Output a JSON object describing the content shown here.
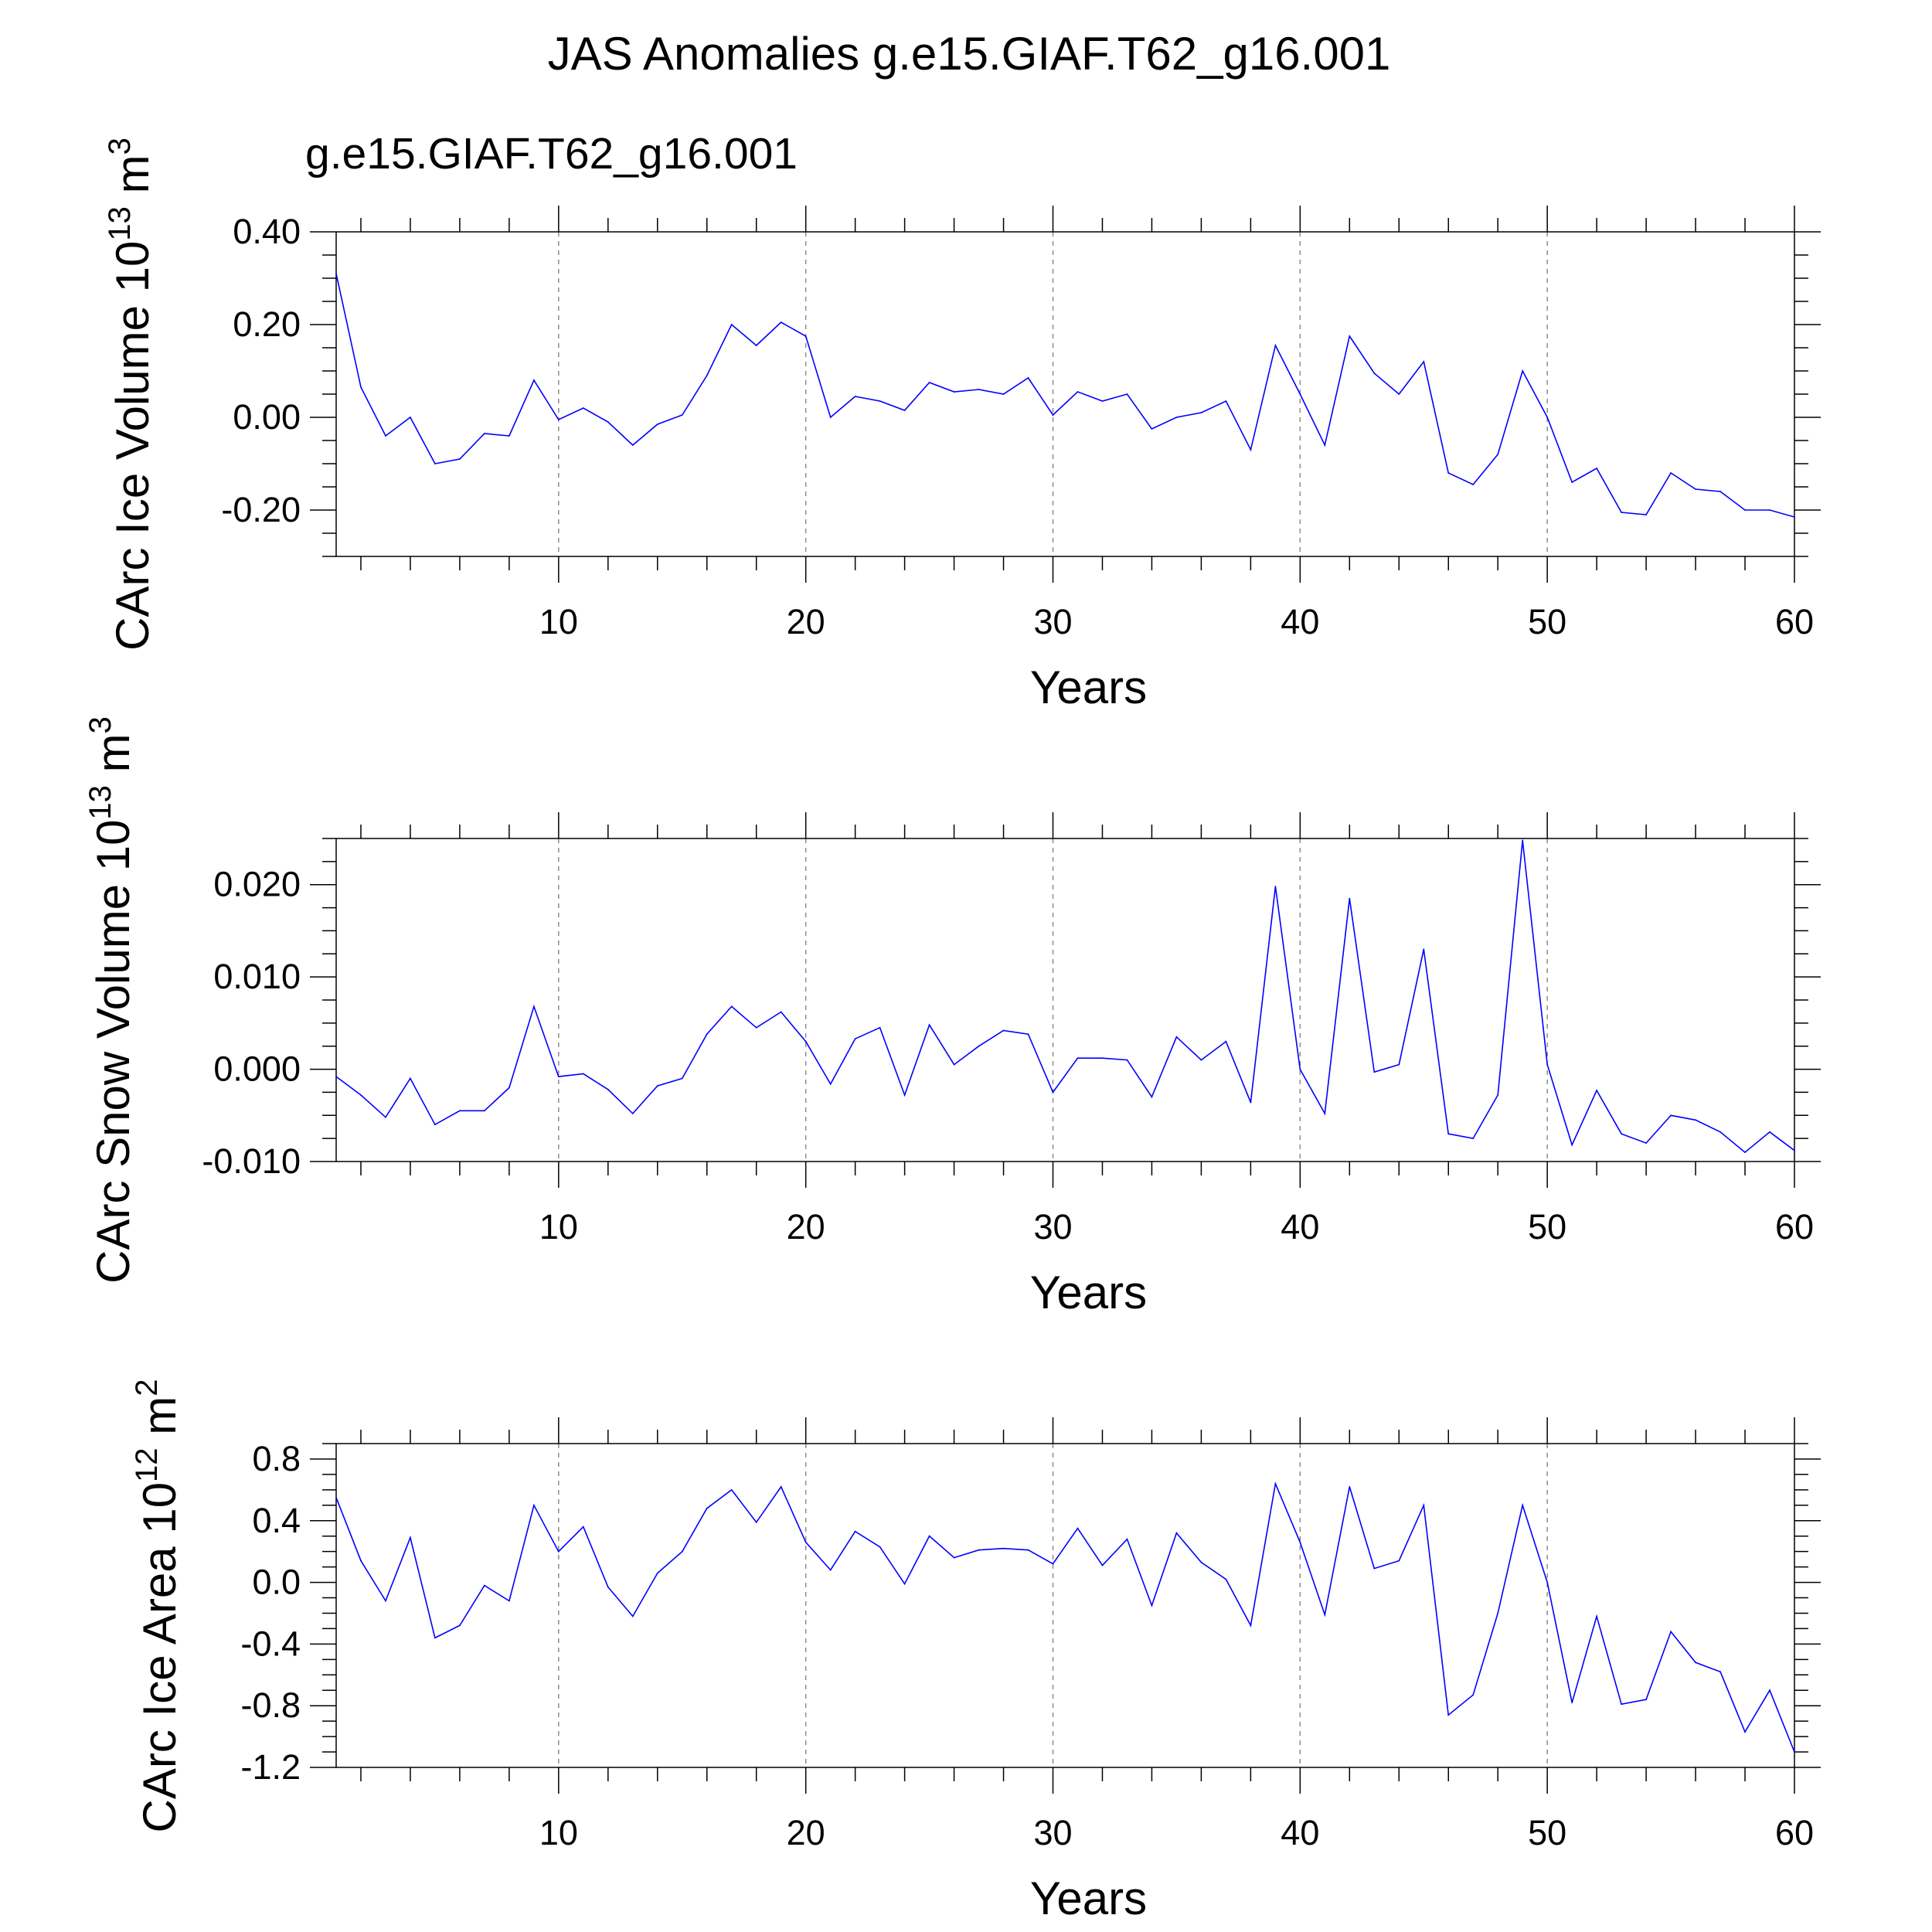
{
  "title": "JAS Anomalies g.e15.GIAF.T62_g16.001",
  "legend_label": "g.e15.GIAF.T62_g16.001",
  "colors": {
    "series": "#0000ff",
    "legend": "#0000ff",
    "grid": "#8c8c8c",
    "axis": "#000000"
  },
  "chart_data": [
    {
      "type": "line",
      "name": "ice-volume",
      "ylabel_main": "CArc Ice Volume 10",
      "ylabel_exp": "13",
      "ylabel_unit": " m",
      "ylabel_unit_exp": "3",
      "xlabel": "Years",
      "xlim": [
        1,
        60
      ],
      "ylim": [
        -0.3,
        0.4
      ],
      "x_ticks": [
        10,
        20,
        30,
        40,
        50,
        60
      ],
      "x_tick_labels": [
        "10",
        "20",
        "30",
        "40",
        "50",
        "60"
      ],
      "y_ticks": [
        0.4,
        0.2,
        0.0,
        -0.2
      ],
      "y_tick_labels": [
        "0.40",
        "0.20",
        "0.00",
        "-0.20"
      ],
      "y_minor_step": 0.05,
      "grid_x": [
        10,
        20,
        30,
        40,
        50
      ],
      "series": [
        {
          "name": "g.e15.GIAF.T62_g16.001",
          "x_start": 1,
          "values": [
            0.31,
            0.065,
            -0.04,
            0.0,
            -0.1,
            -0.09,
            -0.035,
            -0.04,
            0.08,
            -0.005,
            0.02,
            -0.01,
            -0.06,
            -0.015,
            0.005,
            0.09,
            0.2,
            0.155,
            0.205,
            0.175,
            0.0,
            0.045,
            0.035,
            0.015,
            0.075,
            0.055,
            0.06,
            0.05,
            0.085,
            0.005,
            0.055,
            0.035,
            0.05,
            -0.025,
            0.0,
            0.01,
            0.035,
            -0.07,
            0.155,
            0.05,
            -0.06,
            0.175,
            0.095,
            0.05,
            0.12,
            -0.12,
            -0.145,
            -0.08,
            0.1,
            0.0,
            -0.14,
            -0.11,
            -0.205,
            -0.21,
            -0.12,
            -0.155,
            -0.16,
            -0.2,
            -0.2,
            -0.215
          ]
        }
      ]
    },
    {
      "type": "line",
      "name": "snow-volume",
      "ylabel_main": "CArc Snow Volume 10",
      "ylabel_exp": "13",
      "ylabel_unit": " m",
      "ylabel_unit_exp": "3",
      "xlabel": "Years",
      "xlim": [
        1,
        60
      ],
      "ylim": [
        -0.01,
        0.025
      ],
      "x_ticks": [
        10,
        20,
        30,
        40,
        50,
        60
      ],
      "x_tick_labels": [
        "10",
        "20",
        "30",
        "40",
        "50",
        "60"
      ],
      "y_ticks": [
        0.02,
        0.01,
        0.0,
        -0.01
      ],
      "y_tick_labels": [
        "0.020",
        "0.010",
        "0.000",
        "-0.010"
      ],
      "y_minor_step": 0.0025,
      "grid_x": [
        10,
        20,
        30,
        40,
        50
      ],
      "series": [
        {
          "name": "g.e15.GIAF.T62_g16.001",
          "x_start": 1,
          "values": [
            -0.0008,
            -0.0028,
            -0.0052,
            -0.001,
            -0.006,
            -0.0045,
            -0.0045,
            -0.002,
            0.0068,
            -0.0008,
            -0.0005,
            -0.0022,
            -0.0048,
            -0.0018,
            -0.001,
            0.0038,
            0.0068,
            0.0045,
            0.0062,
            0.003,
            -0.0016,
            0.0033,
            0.0045,
            -0.0028,
            0.0048,
            0.0005,
            0.0025,
            0.0042,
            0.0038,
            -0.0025,
            0.0012,
            0.0012,
            0.001,
            -0.003,
            0.0035,
            0.001,
            0.003,
            -0.0036,
            0.0198,
            0.0,
            -0.0048,
            0.0185,
            -0.0003,
            0.0005,
            0.013,
            -0.007,
            -0.0075,
            -0.0028,
            0.0248,
            0.0005,
            -0.0082,
            -0.0023,
            -0.007,
            -0.008,
            -0.005,
            -0.0055,
            -0.0068,
            -0.009,
            -0.0068,
            -0.0088
          ]
        }
      ]
    },
    {
      "type": "line",
      "name": "ice-area",
      "ylabel_main": "CArc Ice Area 10",
      "ylabel_exp": "12",
      "ylabel_unit": " m",
      "ylabel_unit_exp": "2",
      "xlabel": "Years",
      "xlim": [
        1,
        60
      ],
      "ylim": [
        -1.2,
        0.9
      ],
      "x_ticks": [
        10,
        20,
        30,
        40,
        50,
        60
      ],
      "x_tick_labels": [
        "10",
        "20",
        "30",
        "40",
        "50",
        "60"
      ],
      "y_ticks": [
        0.8,
        0.4,
        0.0,
        -0.4,
        -0.8,
        -1.2
      ],
      "y_tick_labels": [
        "0.8",
        "0.4",
        "0.0",
        "-0.4",
        "-0.8",
        "-1.2"
      ],
      "y_minor_step": 0.1,
      "grid_x": [
        10,
        20,
        30,
        40,
        50
      ],
      "series": [
        {
          "name": "g.e15.GIAF.T62_g16.001",
          "x_start": 1,
          "values": [
            0.55,
            0.14,
            -0.12,
            0.29,
            -0.36,
            -0.28,
            -0.02,
            -0.12,
            0.5,
            0.2,
            0.36,
            -0.03,
            -0.22,
            0.06,
            0.2,
            0.48,
            0.6,
            0.39,
            0.62,
            0.26,
            0.08,
            0.33,
            0.23,
            -0.01,
            0.3,
            0.16,
            0.21,
            0.22,
            0.21,
            0.12,
            0.35,
            0.11,
            0.28,
            -0.15,
            0.32,
            0.13,
            0.02,
            -0.28,
            0.64,
            0.26,
            -0.21,
            0.62,
            0.09,
            0.14,
            0.5,
            -0.86,
            -0.73,
            -0.2,
            0.5,
            0.0,
            -0.78,
            -0.22,
            -0.79,
            -0.76,
            -0.32,
            -0.52,
            -0.58,
            -0.97,
            -0.7,
            -1.1
          ]
        }
      ]
    }
  ]
}
